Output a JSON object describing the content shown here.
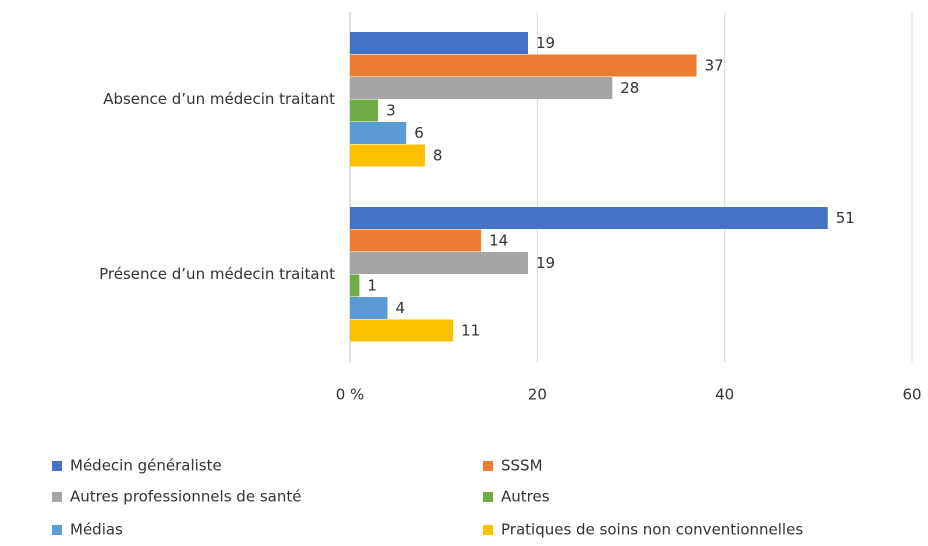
{
  "chart_data": {
    "type": "hbar",
    "categories": [
      "Absence d’un médecin traitant",
      "Présence d’un médecin traitant"
    ],
    "series": [
      {
        "name": "Médecin généraliste",
        "color": "#4472c4",
        "values": [
          19,
          51
        ]
      },
      {
        "name": "SSSM",
        "color": "#ed7d31",
        "values": [
          37,
          14
        ]
      },
      {
        "name": "Autres professionnels de santé",
        "color": "#a5a5a5",
        "values": [
          28,
          19
        ]
      },
      {
        "name": "Autres",
        "color": "#70ad47",
        "values": [
          3,
          1
        ]
      },
      {
        "name": "Médias",
        "color": "#5b9bd5",
        "values": [
          6,
          4
        ]
      },
      {
        "name": "Pratiques de soins non conventionnelles",
        "color": "#ffc000",
        "values": [
          8,
          11
        ]
      }
    ],
    "xlim": [
      0,
      60
    ],
    "xticks": [
      {
        "value": 0,
        "label": "0 %"
      },
      20,
      40,
      60
    ],
    "grid": true,
    "legend": "bottom"
  }
}
